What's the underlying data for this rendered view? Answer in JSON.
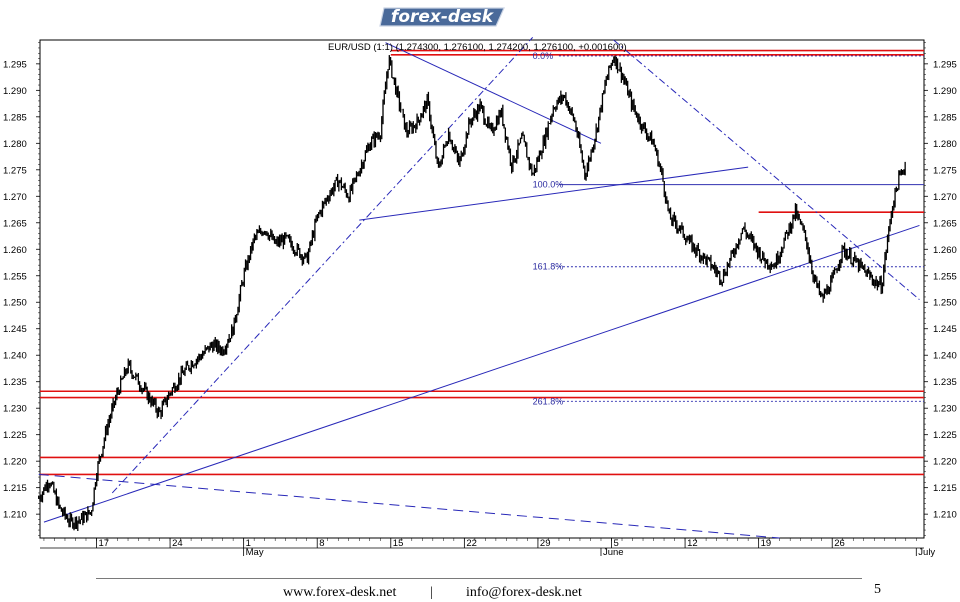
{
  "header": {
    "logo_text": "forex-desk"
  },
  "chart_data": {
    "type": "candlestick",
    "title": "EUR/USD (1:1) (1.274300, 1.276100, 1.274200, 1.276100, +0.001600)",
    "symbol": "EUR/USD",
    "y_ticks": [
      "1.295",
      "1.290",
      "1.285",
      "1.280",
      "1.275",
      "1.270",
      "1.265",
      "1.260",
      "1.255",
      "1.250",
      "1.245",
      "1.240",
      "1.235",
      "1.230",
      "1.225",
      "1.220",
      "1.215",
      "1.210"
    ],
    "ylim": [
      1.2055,
      1.2995
    ],
    "x_ticks": [
      {
        "day": 17,
        "label": "17"
      },
      {
        "day": 24,
        "label": "24"
      },
      {
        "day": 31,
        "label": "1"
      },
      {
        "day": 38,
        "label": "8"
      },
      {
        "day": 45,
        "label": "15"
      },
      {
        "day": 52,
        "label": "22"
      },
      {
        "day": 59,
        "label": "29"
      },
      {
        "day": 66,
        "label": "5"
      },
      {
        "day": 73,
        "label": "12"
      },
      {
        "day": 80,
        "label": "19"
      },
      {
        "day": 87,
        "label": "26"
      }
    ],
    "month_labels": [
      {
        "day": 31,
        "label": "May"
      },
      {
        "day": 65,
        "label": "June"
      },
      {
        "day": 95,
        "label": "July"
      }
    ],
    "x_range_days": [
      11.5,
      95.3
    ],
    "price_path": [
      [
        11.5,
        1.213
      ],
      [
        12.5,
        1.2165
      ],
      [
        13.5,
        1.211
      ],
      [
        14.5,
        1.2085
      ],
      [
        15.5,
        1.209
      ],
      [
        16.5,
        1.2105
      ],
      [
        17.0,
        1.218
      ],
      [
        18.0,
        1.2265
      ],
      [
        19.0,
        1.233
      ],
      [
        20.0,
        1.238
      ],
      [
        21.0,
        1.235
      ],
      [
        22.0,
        1.232
      ],
      [
        23.0,
        1.229
      ],
      [
        24.0,
        1.233
      ],
      [
        25.0,
        1.236
      ],
      [
        26.0,
        1.2385
      ],
      [
        27.0,
        1.24
      ],
      [
        28.0,
        1.242
      ],
      [
        29.0,
        1.241
      ],
      [
        30.0,
        1.245
      ],
      [
        31.0,
        1.255
      ],
      [
        32.0,
        1.262
      ],
      [
        33.0,
        1.264
      ],
      [
        34.0,
        1.261
      ],
      [
        35.0,
        1.262
      ],
      [
        36.0,
        1.26
      ],
      [
        37.0,
        1.258
      ],
      [
        38.0,
        1.266
      ],
      [
        39.0,
        1.27
      ],
      [
        40.0,
        1.273
      ],
      [
        41.0,
        1.27
      ],
      [
        42.0,
        1.275
      ],
      [
        43.0,
        1.28
      ],
      [
        44.0,
        1.282
      ],
      [
        44.8,
        1.296
      ],
      [
        45.5,
        1.29
      ],
      [
        46.5,
        1.282
      ],
      [
        47.5,
        1.284
      ],
      [
        48.5,
        1.288
      ],
      [
        49.5,
        1.275
      ],
      [
        50.5,
        1.282
      ],
      [
        51.5,
        1.276
      ],
      [
        52.5,
        1.284
      ],
      [
        53.5,
        1.287
      ],
      [
        54.5,
        1.282
      ],
      [
        55.5,
        1.286
      ],
      [
        56.5,
        1.276
      ],
      [
        57.5,
        1.281
      ],
      [
        58.5,
        1.274
      ],
      [
        59.5,
        1.28
      ],
      [
        60.5,
        1.287
      ],
      [
        61.5,
        1.289
      ],
      [
        62.5,
        1.284
      ],
      [
        63.5,
        1.274
      ],
      [
        64.5,
        1.282
      ],
      [
        65.5,
        1.292
      ],
      [
        66.2,
        1.2965
      ],
      [
        67.0,
        1.293
      ],
      [
        68.0,
        1.287
      ],
      [
        69.0,
        1.283
      ],
      [
        70.0,
        1.28
      ],
      [
        70.8,
        1.274
      ],
      [
        71.5,
        1.266
      ],
      [
        72.5,
        1.264
      ],
      [
        73.5,
        1.261
      ],
      [
        74.5,
        1.259
      ],
      [
        75.5,
        1.257
      ],
      [
        76.5,
        1.2545
      ],
      [
        77.5,
        1.259
      ],
      [
        78.5,
        1.264
      ],
      [
        79.5,
        1.261
      ],
      [
        80.5,
        1.258
      ],
      [
        81.5,
        1.257
      ],
      [
        82.5,
        1.262
      ],
      [
        83.5,
        1.267
      ],
      [
        84.5,
        1.262
      ],
      [
        85.2,
        1.255
      ],
      [
        86.0,
        1.2505
      ],
      [
        87.0,
        1.254
      ],
      [
        88.0,
        1.26
      ],
      [
        89.0,
        1.258
      ],
      [
        90.0,
        1.256
      ],
      [
        91.0,
        1.254
      ],
      [
        91.7,
        1.253
      ],
      [
        92.2,
        1.261
      ],
      [
        92.7,
        1.268
      ],
      [
        93.3,
        1.273
      ],
      [
        94.0,
        1.2762
      ]
    ],
    "fibonacci": [
      {
        "label": "0.0%",
        "value": 1.2965
      },
      {
        "label": "100.0%",
        "value": 1.2722
      },
      {
        "label": "161.8%",
        "value": 1.2567
      },
      {
        "label": "261.8%",
        "value": 1.2313
      }
    ],
    "horizontal_lines_red": [
      1.2975,
      1.2967,
      1.267,
      1.2332,
      1.232,
      1.2207,
      1.2175
    ],
    "trendlines": [
      {
        "style": "solid",
        "from": [
          12.0,
          1.2085
        ],
        "to": [
          95.3,
          1.2645
        ]
      },
      {
        "style": "solid",
        "from": [
          42.0,
          1.2655
        ],
        "to": [
          79.0,
          1.2755
        ]
      },
      {
        "style": "solid",
        "from": [
          44.5,
          1.299
        ],
        "to": [
          65.0,
          1.28
        ]
      },
      {
        "style": "dashdot",
        "from": [
          18.5,
          1.214
        ],
        "to": [
          58.5,
          1.3
        ]
      },
      {
        "style": "dashdot",
        "from": [
          66.2,
          1.2995
        ],
        "to": [
          95.3,
          1.2505
        ]
      },
      {
        "style": "dashed",
        "from": [
          11.5,
          1.2175
        ],
        "to": [
          82.0,
          1.2055
        ]
      }
    ]
  },
  "footer": {
    "website": "www.forex-desk.net",
    "separator": "|",
    "email": "info@forex-desk.net",
    "page_number": "5"
  }
}
